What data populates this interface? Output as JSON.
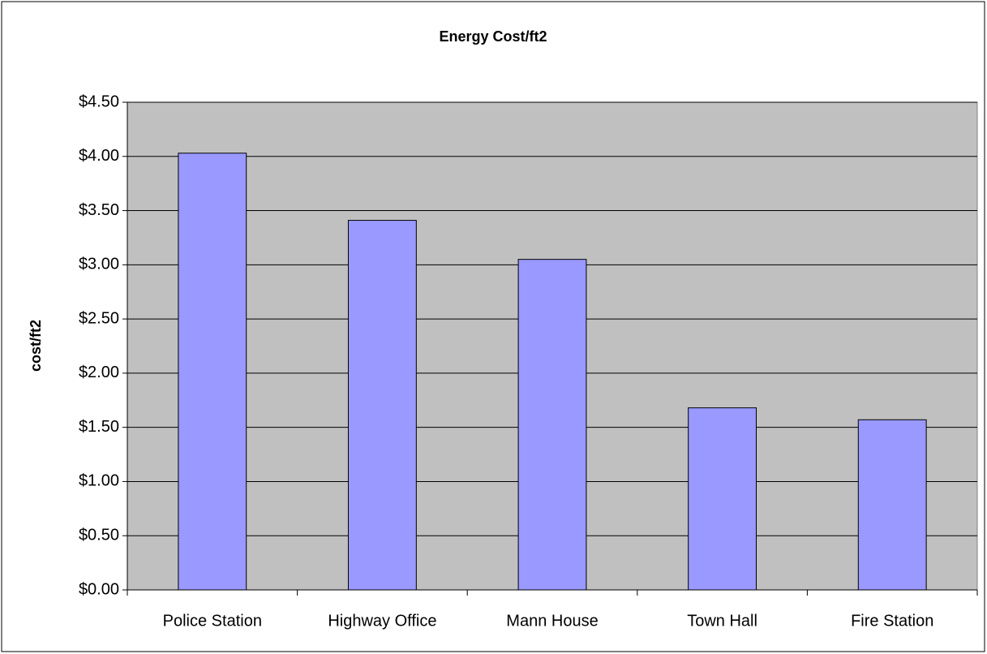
{
  "chart_data": {
    "type": "bar",
    "title": "Energy Cost/ft2",
    "y_label": "cost/ft2",
    "categories": [
      "Police Station",
      "Highway Office",
      "Mann House",
      "Town Hall",
      "Fire Station"
    ],
    "values": [
      4.03,
      3.41,
      3.05,
      1.68,
      1.57
    ],
    "color": "#9999ff",
    "ylim": [
      0,
      4.5
    ],
    "yticks": [
      {
        "value": 0,
        "label": "$0.00"
      },
      {
        "value": 0.5,
        "label": "$0.50"
      },
      {
        "value": 1,
        "label": "$1.00"
      },
      {
        "value": 1.5,
        "label": "$1.50"
      },
      {
        "value": 2,
        "label": "$2.00"
      },
      {
        "value": 2.5,
        "label": "$2.50"
      },
      {
        "value": 3,
        "label": "$3.00"
      },
      {
        "value": 3.5,
        "label": "$3.50"
      },
      {
        "value": 4,
        "label": "$4.00"
      },
      {
        "value": 4.5,
        "label": "$4.50"
      }
    ],
    "grid": true
  }
}
